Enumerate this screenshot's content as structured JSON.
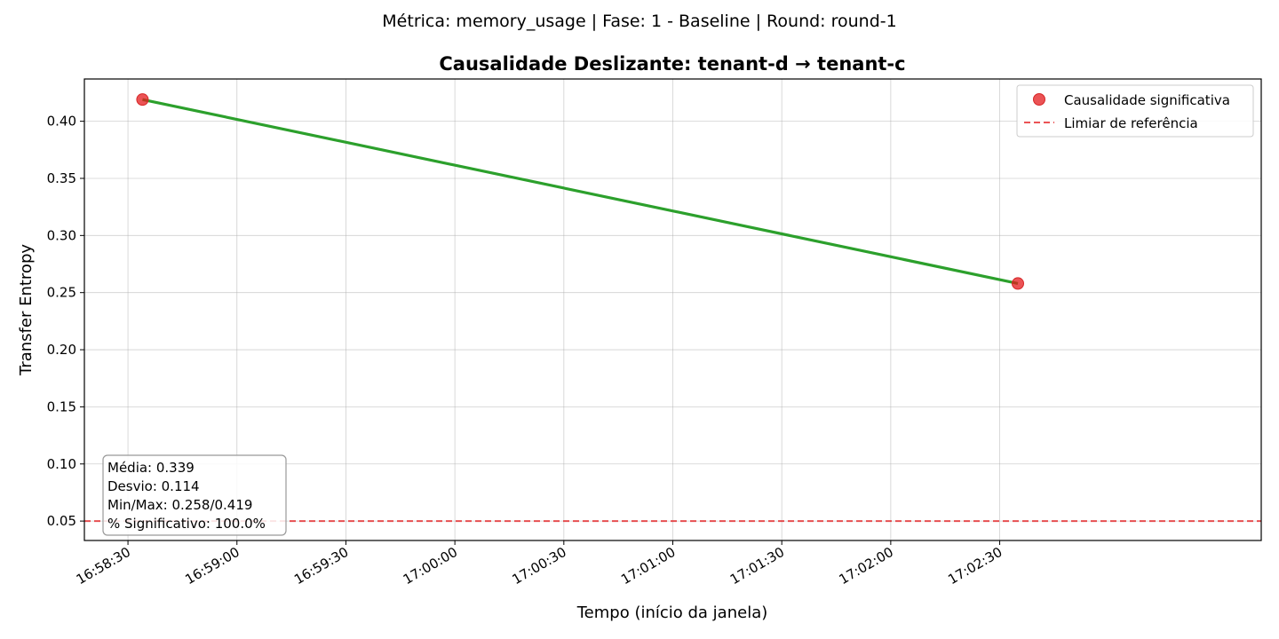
{
  "figure": {
    "suptitle": "Métrica: memory_usage | Fase: 1 - Baseline | Round: round-1"
  },
  "chart_data": {
    "type": "line",
    "title": "Causalidade Deslizante: tenant-d → tenant-c",
    "xlabel": "Tempo (início da janela)",
    "ylabel": "Transfer Entropy",
    "x_ticks": [
      "16:58:30",
      "16:59:00",
      "16:59:30",
      "17:00:00",
      "17:00:30",
      "17:01:00",
      "17:01:30",
      "17:02:00",
      "17:02:30"
    ],
    "xlim": [
      "16:58:18",
      "17:03:42"
    ],
    "y_ticks": [
      0.05,
      0.1,
      0.15,
      0.2,
      0.25,
      0.3,
      0.35,
      0.4
    ],
    "ylim": [
      0.033,
      0.437
    ],
    "grid": true,
    "series": [
      {
        "x": [
          "16:58:34",
          "17:02:35"
        ],
        "values": [
          0.419,
          0.258
        ],
        "color": "#2ca02c"
      }
    ],
    "significant_points": {
      "name": "Causalidade significativa",
      "x": [
        "16:58:34",
        "17:02:35"
      ],
      "values": [
        0.419,
        0.258
      ],
      "color": "#e41a1c"
    },
    "threshold": {
      "name": "Limiar de referência",
      "value": 0.05,
      "color": "#e41a1c",
      "style": "dashed"
    },
    "legend_position": "top-right",
    "stats_box": {
      "lines": [
        "Média: 0.339",
        "Desvio: 0.114",
        "Min/Max: 0.258/0.419",
        "% Significativo: 100.0%"
      ],
      "position": "bottom-left"
    }
  }
}
